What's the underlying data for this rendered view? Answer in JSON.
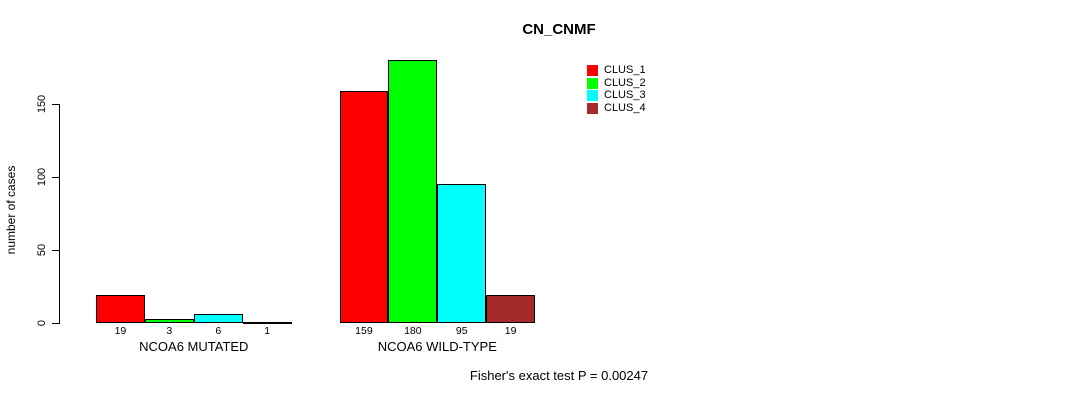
{
  "chart_data": {
    "type": "bar",
    "title": "CN_CNMF",
    "ylabel": "number of cases",
    "xlabel": "",
    "yticks": [
      0,
      50,
      100,
      150
    ],
    "ylim": [
      0,
      185
    ],
    "grid": false,
    "legend_position": "top-right",
    "categories": [
      "NCOA6 MUTATED",
      "NCOA6 WILD-TYPE"
    ],
    "series": [
      {
        "name": "CLUS_1",
        "color": "#ff0000",
        "values": [
          19,
          159
        ]
      },
      {
        "name": "CLUS_2",
        "color": "#00ff00",
        "values": [
          3,
          180
        ]
      },
      {
        "name": "CLUS_3",
        "color": "#00ffff",
        "values": [
          6,
          95
        ]
      },
      {
        "name": "CLUS_4",
        "color": "#a52a2a",
        "values": [
          1,
          19
        ]
      }
    ],
    "bar_value_labels": [
      [
        19,
        3,
        6,
        1
      ],
      [
        159,
        180,
        95,
        19
      ]
    ],
    "annotation": "Fisher's exact test P = 0.00247"
  }
}
